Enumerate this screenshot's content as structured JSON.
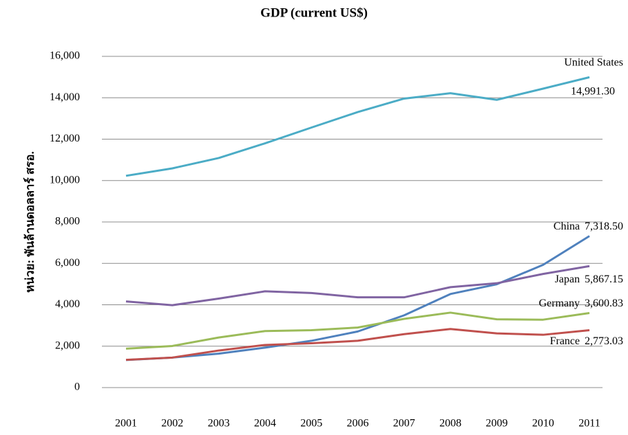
{
  "chart_data": {
    "type": "line",
    "title": "GDP (current US$)",
    "y_label": "หน่วย: พันล้านดอลลาร์ สรอ.",
    "categories": [
      "2001",
      "2002",
      "2003",
      "2004",
      "2005",
      "2006",
      "2007",
      "2008",
      "2009",
      "2010",
      "2011"
    ],
    "ylim": [
      0,
      16000
    ],
    "yticks": [
      0,
      {
        "value": 2000,
        "label": "2,000"
      },
      {
        "value": 4000,
        "label": "4,000"
      },
      {
        "value": 6000,
        "label": "6,000"
      },
      {
        "value": 8000,
        "label": "8,000"
      },
      {
        "value": 10000,
        "label": "10,000"
      },
      {
        "value": 12000,
        "label": "12,000"
      },
      {
        "value": 14000,
        "label": "14,000"
      },
      {
        "value": 16000,
        "label": "16,000"
      }
    ],
    "grid": true,
    "series": [
      {
        "name": "United States",
        "color": "#4bacc6",
        "values": [
          10230,
          10590,
          11090,
          11800,
          12560,
          13310,
          13960,
          14220,
          13900,
          14440,
          14991.3
        ],
        "value_labels": [
          null,
          null,
          null,
          null,
          null,
          null,
          null,
          null,
          null,
          null,
          "14,991.30"
        ]
      },
      {
        "name": "China",
        "color": "#4f81bd",
        "values": [
          1330,
          1450,
          1640,
          1930,
          2260,
          2710,
          3490,
          4520,
          4990,
          5930,
          7318.5
        ],
        "value_labels": [
          null,
          null,
          null,
          null,
          null,
          null,
          null,
          null,
          null,
          null,
          "7,318.50"
        ]
      },
      {
        "name": "Japan",
        "color": "#8064a2",
        "values": [
          4160,
          3980,
          4300,
          4650,
          4570,
          4360,
          4360,
          4850,
          5040,
          5490,
          5867.15
        ],
        "value_labels": [
          null,
          null,
          null,
          null,
          null,
          null,
          null,
          null,
          null,
          null,
          "5,867.15"
        ]
      },
      {
        "name": "Germany",
        "color": "#9bbb59",
        "values": [
          1880,
          2010,
          2420,
          2730,
          2770,
          2900,
          3320,
          3620,
          3300,
          3280,
          3600.83
        ],
        "value_labels": [
          null,
          null,
          null,
          null,
          null,
          null,
          null,
          null,
          null,
          null,
          "3,600.83"
        ]
      },
      {
        "name": "France",
        "color": "#c0504d",
        "values": [
          1340,
          1450,
          1790,
          2060,
          2140,
          2260,
          2580,
          2830,
          2620,
          2550,
          2773.03
        ],
        "value_labels": [
          null,
          null,
          null,
          null,
          null,
          null,
          null,
          null,
          null,
          null,
          "2,773.03"
        ]
      }
    ]
  }
}
